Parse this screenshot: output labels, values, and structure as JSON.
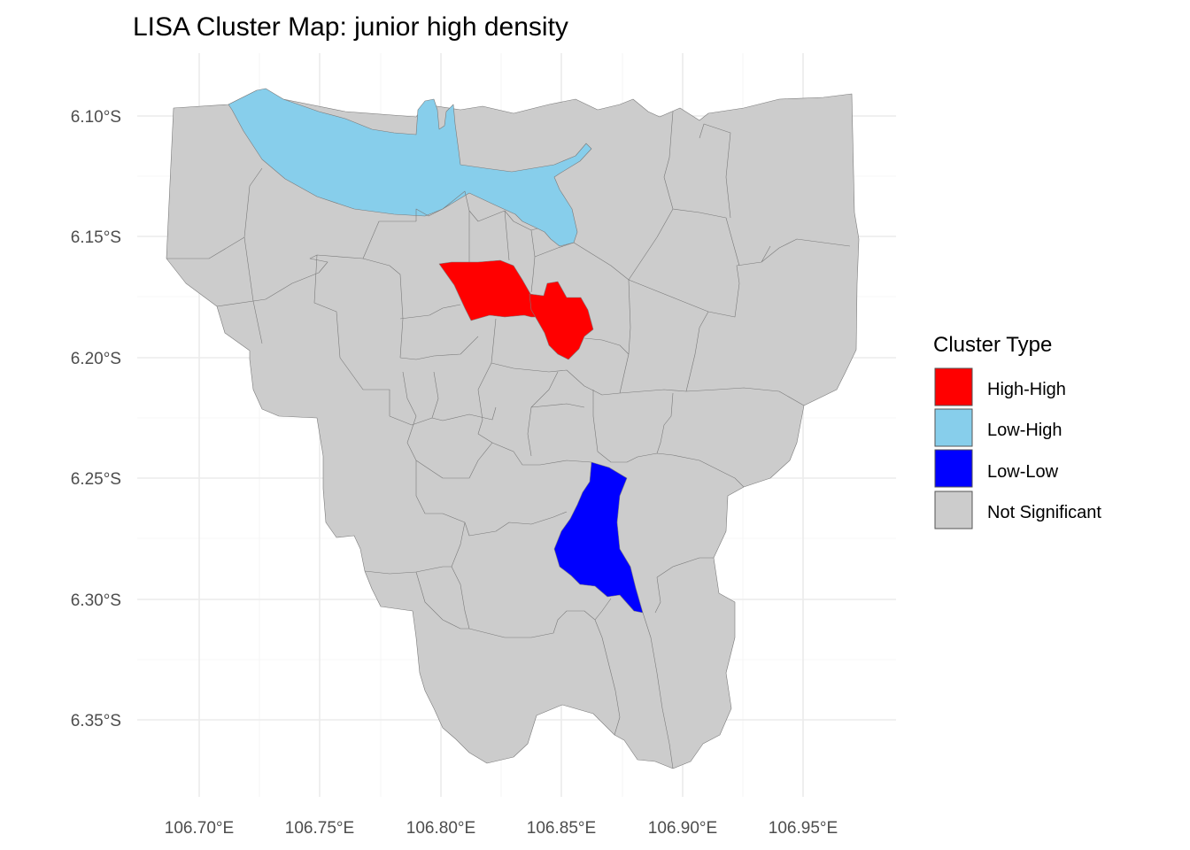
{
  "title": "LISA Cluster Map: junior high density",
  "x_axis": {
    "ticks": [
      "106.70°E",
      "106.75°E",
      "106.80°E",
      "106.85°E",
      "106.90°E",
      "106.95°E"
    ]
  },
  "y_axis": {
    "ticks": [
      "6.10°S",
      "6.15°S",
      "6.20°S",
      "6.25°S",
      "6.30°S",
      "6.35°S"
    ]
  },
  "legend": {
    "title": "Cluster Type",
    "items": [
      {
        "label": "High-High",
        "color": "#ff0000"
      },
      {
        "label": "Low-High",
        "color": "#87ceeb"
      },
      {
        "label": "Low-Low",
        "color": "#0000ff"
      },
      {
        "label": "Not Significant",
        "color": "#cccccc"
      }
    ]
  },
  "chart_data": {
    "type": "choropleth",
    "title": "LISA Cluster Map: junior high density",
    "xlim": [
      106.68,
      106.98
    ],
    "ylim": [
      -6.375,
      -6.075
    ],
    "x_tick_values": [
      106.7,
      106.75,
      106.8,
      106.85,
      106.9,
      106.95
    ],
    "y_tick_values": [
      -6.1,
      -6.15,
      -6.2,
      -6.25,
      -6.3,
      -6.35
    ],
    "grid": true,
    "legend_position": "right",
    "categories": [
      "High-High",
      "Low-High",
      "Low-Low",
      "Not Significant"
    ],
    "colors": {
      "High-High": "#ff0000",
      "Low-High": "#87ceeb",
      "Low-Low": "#0000ff",
      "Not Significant": "#cccccc"
    }
  }
}
